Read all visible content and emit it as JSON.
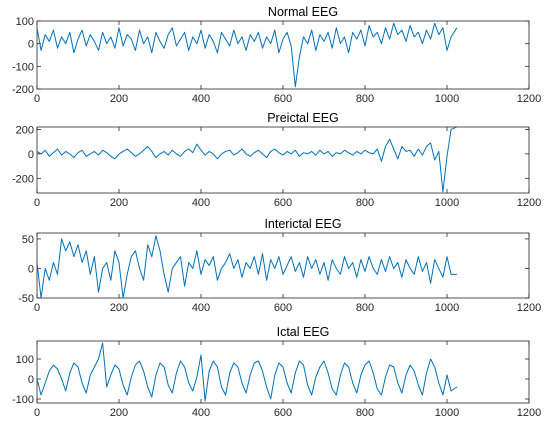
{
  "chart_data": [
    {
      "type": "line",
      "title": "Normal EEG",
      "xlim": [
        0,
        1200
      ],
      "ylim": [
        -200,
        100
      ],
      "xticks": [
        "0",
        "200",
        "400",
        "600",
        "800",
        "1000",
        "1200"
      ],
      "yticks": [
        "100",
        "0",
        "-100",
        "-200"
      ],
      "color": "#0072BD",
      "series": [
        {
          "x": [
            0,
            10,
            20,
            30,
            40,
            50,
            60,
            70,
            80,
            90,
            100,
            110,
            120,
            130,
            140,
            150,
            160,
            170,
            180,
            190,
            200,
            210,
            220,
            230,
            240,
            250,
            260,
            270,
            280,
            290,
            300,
            310,
            320,
            330,
            340,
            350,
            360,
            370,
            380,
            390,
            400,
            410,
            420,
            430,
            440,
            450,
            460,
            470,
            480,
            490,
            500,
            510,
            520,
            530,
            540,
            550,
            560,
            570,
            580,
            590,
            600,
            610,
            620,
            630,
            640,
            650,
            660,
            670,
            680,
            690,
            700,
            710,
            720,
            730,
            740,
            750,
            760,
            770,
            780,
            790,
            800,
            810,
            820,
            830,
            840,
            850,
            860,
            870,
            880,
            890,
            900,
            910,
            920,
            930,
            940,
            950,
            960,
            970,
            980,
            990,
            1000,
            1010,
            1024
          ],
          "values": [
            70,
            -30,
            40,
            10,
            60,
            -20,
            30,
            0,
            50,
            -40,
            20,
            60,
            -10,
            40,
            10,
            -30,
            50,
            0,
            30,
            -20,
            70,
            -10,
            40,
            20,
            -30,
            60,
            0,
            30,
            -40,
            50,
            10,
            -20,
            40,
            70,
            -10,
            20,
            50,
            -30,
            30,
            0,
            60,
            -20,
            40,
            10,
            -40,
            50,
            20,
            -10,
            60,
            0,
            30,
            -30,
            40,
            10,
            50,
            -20,
            30,
            0,
            60,
            -40,
            20,
            50,
            -10,
            -190,
            -60,
            30,
            0,
            60,
            -30,
            40,
            10,
            50,
            -20,
            70,
            0,
            30,
            -40,
            50,
            20,
            60,
            -10,
            80,
            30,
            50,
            0,
            70,
            20,
            90,
            40,
            60,
            10,
            80,
            30,
            50,
            0,
            60,
            20,
            90,
            40,
            70,
            -30,
            30,
            70
          ]
        }
      ]
    },
    {
      "type": "line",
      "title": "Preictal EEG",
      "xlim": [
        0,
        1200
      ],
      "ylim": [
        -320,
        220
      ],
      "xticks": [
        "0",
        "200",
        "400",
        "600",
        "800",
        "1000",
        "1200"
      ],
      "yticks": [
        "200",
        "0",
        "-200"
      ],
      "color": "#0072BD",
      "series": [
        {
          "x": [
            0,
            10,
            20,
            30,
            40,
            50,
            60,
            70,
            80,
            90,
            100,
            110,
            120,
            130,
            140,
            150,
            160,
            170,
            180,
            190,
            200,
            210,
            220,
            230,
            240,
            250,
            260,
            270,
            280,
            290,
            300,
            310,
            320,
            330,
            340,
            350,
            360,
            370,
            380,
            390,
            400,
            410,
            420,
            430,
            440,
            450,
            460,
            470,
            480,
            490,
            500,
            510,
            520,
            530,
            540,
            550,
            560,
            570,
            580,
            590,
            600,
            610,
            620,
            630,
            640,
            650,
            660,
            670,
            680,
            690,
            700,
            710,
            720,
            730,
            740,
            750,
            760,
            770,
            780,
            790,
            800,
            810,
            820,
            830,
            840,
            850,
            860,
            870,
            880,
            890,
            900,
            910,
            920,
            930,
            940,
            950,
            960,
            970,
            980,
            990,
            1000,
            1010,
            1024
          ],
          "values": [
            20,
            0,
            30,
            -20,
            10,
            40,
            -10,
            20,
            0,
            -30,
            10,
            30,
            -20,
            0,
            20,
            -10,
            30,
            10,
            -20,
            -40,
            0,
            20,
            40,
            10,
            -20,
            0,
            30,
            60,
            20,
            -30,
            0,
            20,
            -10,
            30,
            0,
            -20,
            20,
            40,
            10,
            80,
            30,
            -10,
            20,
            0,
            -40,
            0,
            20,
            30,
            -10,
            10,
            40,
            0,
            -20,
            10,
            30,
            0,
            -30,
            20,
            40,
            10,
            -10,
            20,
            0,
            30,
            -20,
            10,
            0,
            20,
            -10,
            30,
            0,
            20,
            -20,
            10,
            0,
            30,
            10,
            -10,
            20,
            0,
            30,
            10,
            0,
            40,
            -60,
            60,
            120,
            40,
            -40,
            60,
            20,
            30,
            -20,
            40,
            -10,
            60,
            90,
            -50,
            20,
            -310,
            -20,
            200,
            220
          ]
        }
      ]
    },
    {
      "type": "line",
      "title": "Interictal EEG",
      "xlim": [
        0,
        1200
      ],
      "ylim": [
        -50,
        60
      ],
      "xticks": [
        "0",
        "200",
        "400",
        "600",
        "800",
        "1000",
        "1200"
      ],
      "yticks": [
        "50",
        "0",
        "-50"
      ],
      "color": "#0072BD",
      "series": [
        {
          "x": [
            0,
            10,
            20,
            30,
            40,
            50,
            60,
            70,
            80,
            90,
            100,
            110,
            120,
            130,
            140,
            150,
            160,
            170,
            180,
            190,
            200,
            210,
            220,
            230,
            240,
            250,
            260,
            270,
            280,
            290,
            300,
            310,
            320,
            330,
            340,
            350,
            360,
            370,
            380,
            390,
            400,
            410,
            420,
            430,
            440,
            450,
            460,
            470,
            480,
            490,
            500,
            510,
            520,
            530,
            540,
            550,
            560,
            570,
            580,
            590,
            600,
            610,
            620,
            630,
            640,
            650,
            660,
            670,
            680,
            690,
            700,
            710,
            720,
            730,
            740,
            750,
            760,
            770,
            780,
            790,
            800,
            810,
            820,
            830,
            840,
            850,
            860,
            870,
            880,
            890,
            900,
            910,
            920,
            930,
            940,
            950,
            960,
            970,
            980,
            990,
            1000,
            1010,
            1024
          ],
          "values": [
            10,
            -50,
            0,
            -20,
            10,
            -10,
            50,
            30,
            45,
            20,
            40,
            10,
            30,
            -10,
            20,
            -40,
            0,
            10,
            -20,
            30,
            10,
            -50,
            -10,
            20,
            30,
            0,
            -20,
            40,
            20,
            55,
            30,
            -10,
            -40,
            0,
            10,
            20,
            -30,
            10,
            0,
            30,
            -10,
            15,
            5,
            20,
            -20,
            0,
            10,
            25,
            0,
            15,
            -15,
            10,
            0,
            20,
            -10,
            25,
            -20,
            15,
            0,
            20,
            -10,
            5,
            20,
            -5,
            10,
            -15,
            20,
            0,
            15,
            -10,
            10,
            -20,
            15,
            0,
            -10,
            20,
            0,
            10,
            -15,
            15,
            -5,
            20,
            0,
            -10,
            15,
            -5,
            20,
            0,
            10,
            -15,
            15,
            0,
            -10,
            20,
            -5,
            10,
            -25,
            15,
            0,
            -15,
            20,
            -10,
            -10
          ]
        }
      ]
    },
    {
      "type": "line",
      "title": "Ictal EEG",
      "xlim": [
        0,
        1200
      ],
      "ylim": [
        -120,
        190
      ],
      "xticks": [
        "0",
        "200",
        "400",
        "600",
        "800",
        "1000",
        "1200"
      ],
      "yticks": [
        "100",
        "0",
        "-100"
      ],
      "color": "#0072BD",
      "series": [
        {
          "x": [
            0,
            10,
            20,
            30,
            40,
            50,
            60,
            70,
            80,
            90,
            100,
            110,
            120,
            130,
            140,
            150,
            160,
            170,
            180,
            190,
            200,
            210,
            220,
            230,
            240,
            250,
            260,
            270,
            280,
            290,
            300,
            310,
            320,
            330,
            340,
            350,
            360,
            370,
            380,
            390,
            400,
            410,
            420,
            430,
            440,
            450,
            460,
            470,
            480,
            490,
            500,
            510,
            520,
            530,
            540,
            550,
            560,
            570,
            580,
            590,
            600,
            610,
            620,
            630,
            640,
            650,
            660,
            670,
            680,
            690,
            700,
            710,
            720,
            730,
            740,
            750,
            760,
            770,
            780,
            790,
            800,
            810,
            820,
            830,
            840,
            850,
            860,
            870,
            880,
            890,
            900,
            910,
            920,
            930,
            940,
            950,
            960,
            970,
            980,
            990,
            1000,
            1010,
            1024
          ],
          "values": [
            0,
            -80,
            -20,
            40,
            70,
            50,
            0,
            -60,
            30,
            80,
            60,
            -20,
            -70,
            20,
            60,
            100,
            180,
            -40,
            20,
            70,
            50,
            -30,
            -80,
            10,
            70,
            90,
            40,
            -40,
            -90,
            20,
            80,
            60,
            -30,
            -70,
            30,
            90,
            60,
            -20,
            -60,
            10,
            120,
            -110,
            40,
            90,
            60,
            -40,
            -80,
            30,
            80,
            60,
            -20,
            -70,
            20,
            80,
            90,
            40,
            -40,
            -100,
            20,
            80,
            60,
            -20,
            -70,
            30,
            90,
            70,
            -30,
            -80,
            10,
            60,
            90,
            30,
            -50,
            -80,
            20,
            80,
            60,
            -20,
            -70,
            20,
            70,
            90,
            30,
            -50,
            -80,
            10,
            70,
            60,
            -20,
            -70,
            20,
            70,
            40,
            -30,
            -80,
            30,
            100,
            60,
            -20,
            -80,
            20,
            -60,
            -40
          ]
        }
      ]
    }
  ]
}
